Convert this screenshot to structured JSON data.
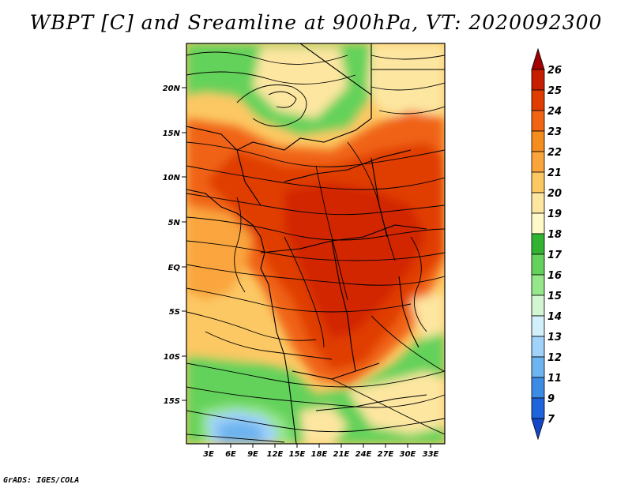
{
  "title": "WBPT [C] and Sreamline at 900hPa, VT: 2020092300",
  "footer": "GrADS: IGES/COLA",
  "map": {
    "lat_labels": [
      "20N",
      "15N",
      "10N",
      "5N",
      "EQ",
      "5S",
      "10S",
      "15S"
    ],
    "lon_labels": [
      "3E",
      "6E",
      "9E",
      "12E",
      "15E",
      "18E",
      "21E",
      "24E",
      "27E",
      "30E",
      "33E"
    ]
  },
  "colorbar": {
    "labels": [
      "26",
      "25",
      "24",
      "23",
      "22",
      "21",
      "20",
      "19",
      "18",
      "17",
      "16",
      "15",
      "14",
      "13",
      "12",
      "11",
      "9",
      "7"
    ],
    "colors": [
      "#a00000",
      "#c81e00",
      "#e03c00",
      "#f06414",
      "#f58c1e",
      "#faa53c",
      "#fcc864",
      "#fde6a0",
      "#fff8c8",
      "#32b432",
      "#64d25a",
      "#96e68c",
      "#d2f5d2",
      "#d2f0fa",
      "#a0d2fa",
      "#6eb4f0",
      "#3c8ce6",
      "#1e64dc",
      "#1446c8"
    ]
  }
}
